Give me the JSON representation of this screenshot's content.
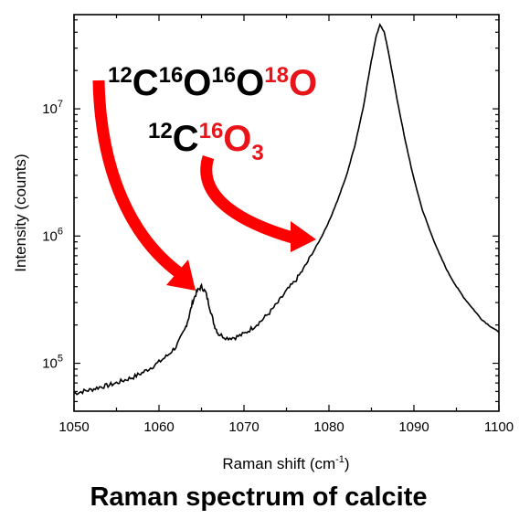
{
  "chart_data": {
    "type": "line",
    "title": "",
    "caption": "Raman spectrum of calcite",
    "xlabel": "Raman shift (cm",
    "xlabel_superscript": "-1",
    "xlabel_suffix": ")",
    "ylabel": "Intensity (counts)",
    "xlim": [
      1050,
      1100
    ],
    "ylim": [
      42000,
      55000000
    ],
    "yscale": "log",
    "x_ticks": [
      1050,
      1060,
      1070,
      1080,
      1090,
      1100
    ],
    "y_ticks": [
      {
        "value": 100000,
        "base": "10",
        "exp": "5"
      },
      {
        "value": 1000000,
        "base": "10",
        "exp": "6"
      },
      {
        "value": 10000000,
        "base": "10",
        "exp": "7"
      }
    ],
    "series": [
      {
        "color": "#000000",
        "x": [
          1050,
          1051,
          1052,
          1053,
          1054,
          1055,
          1056,
          1057,
          1058,
          1059,
          1060,
          1061,
          1062,
          1063,
          1063.5,
          1064,
          1064.5,
          1065,
          1065.5,
          1066,
          1066.5,
          1067,
          1068,
          1069,
          1070,
          1071,
          1072,
          1073,
          1074,
          1075,
          1076,
          1077,
          1078,
          1079,
          1080,
          1081,
          1082,
          1083,
          1084,
          1085,
          1085.5,
          1086,
          1086.5,
          1087,
          1088,
          1089,
          1090,
          1091,
          1092,
          1093,
          1094,
          1095,
          1096,
          1097,
          1098,
          1099,
          1100
        ],
        "y": [
          58000,
          60000,
          62000,
          65000,
          67000,
          70000,
          74000,
          78000,
          84000,
          92000,
          102000,
          115000,
          135000,
          180000,
          230000,
          310000,
          370000,
          400000,
          360000,
          270000,
          200000,
          170000,
          158000,
          160000,
          170000,
          190000,
          215000,
          250000,
          300000,
          370000,
          440000,
          550000,
          720000,
          950000,
          1300000,
          1900000,
          2900000,
          5000000,
          10000000,
          24000000,
          36000000,
          46000000,
          40000000,
          28000000,
          12000000,
          5500000,
          2800000,
          1600000,
          1050000,
          720000,
          520000,
          400000,
          320000,
          265000,
          220000,
          195000,
          175000
        ]
      }
    ],
    "annotations": [
      {
        "iso": [
          "12",
          "16",
          "16",
          "18"
        ],
        "elements": [
          "C",
          "O",
          "O",
          "O"
        ],
        "highlight_index": 3,
        "points_to_x": 1065
      },
      {
        "iso": [
          "12",
          "16"
        ],
        "elements": [
          "C",
          "O"
        ],
        "subscript": "3",
        "highlight_index": 1,
        "points_to_x": 1080
      }
    ],
    "colors": {
      "line": "#000000",
      "highlight": "#e8141a",
      "arrow": "#ff0000"
    },
    "grid": false,
    "legend": "none"
  }
}
